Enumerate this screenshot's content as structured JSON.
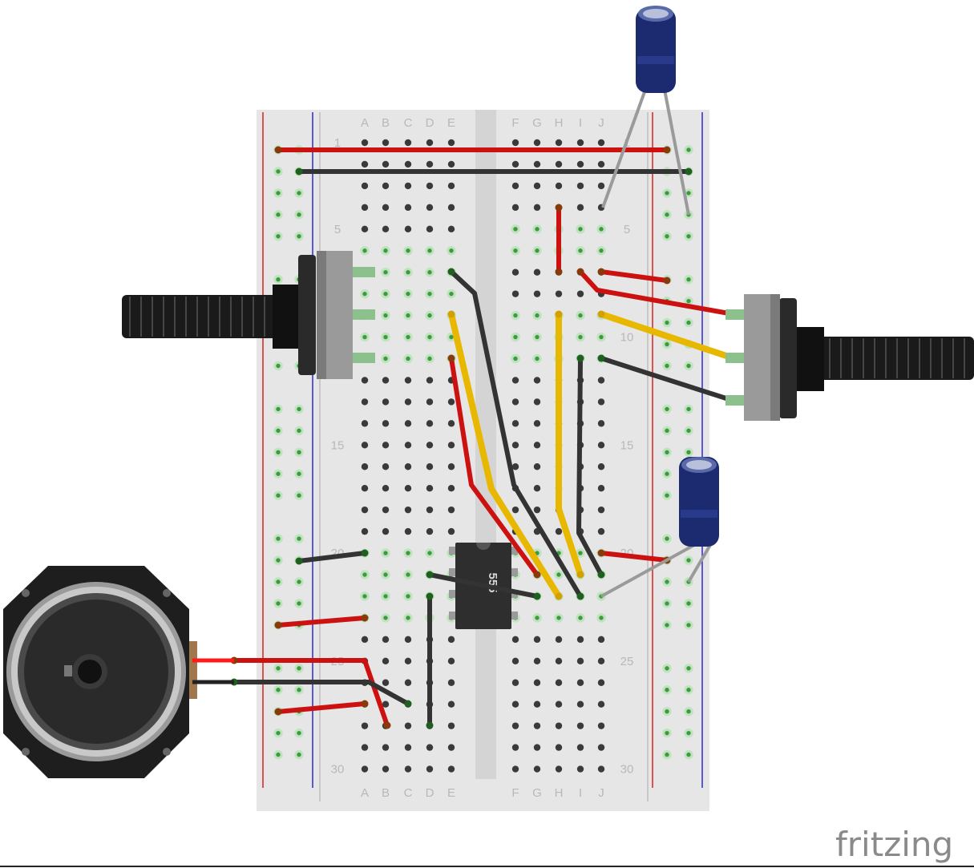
{
  "columns_left": [
    "A",
    "B",
    "C",
    "D",
    "E"
  ],
  "columns_right": [
    "F",
    "G",
    "H",
    "I",
    "J"
  ],
  "row_labels": [
    "1",
    "5",
    "10",
    "15",
    "20",
    "25",
    "30"
  ],
  "ic_label": "555",
  "logo_text": "fritzing",
  "colors": {
    "board": "#e6e6e6",
    "rail_red": "#d62020",
    "rail_blue": "#2a2ad0",
    "wire_red": "#cc1111",
    "wire_black": "#333333",
    "wire_yellow": "#e8b800",
    "cap_body": "#1c2a70",
    "chip": "#2e2e2e"
  },
  "icons": [
    "potentiometer-left-icon",
    "potentiometer-right-icon",
    "capacitor-top-icon",
    "capacitor-mid-icon",
    "speaker-icon",
    "ic-555-icon"
  ]
}
